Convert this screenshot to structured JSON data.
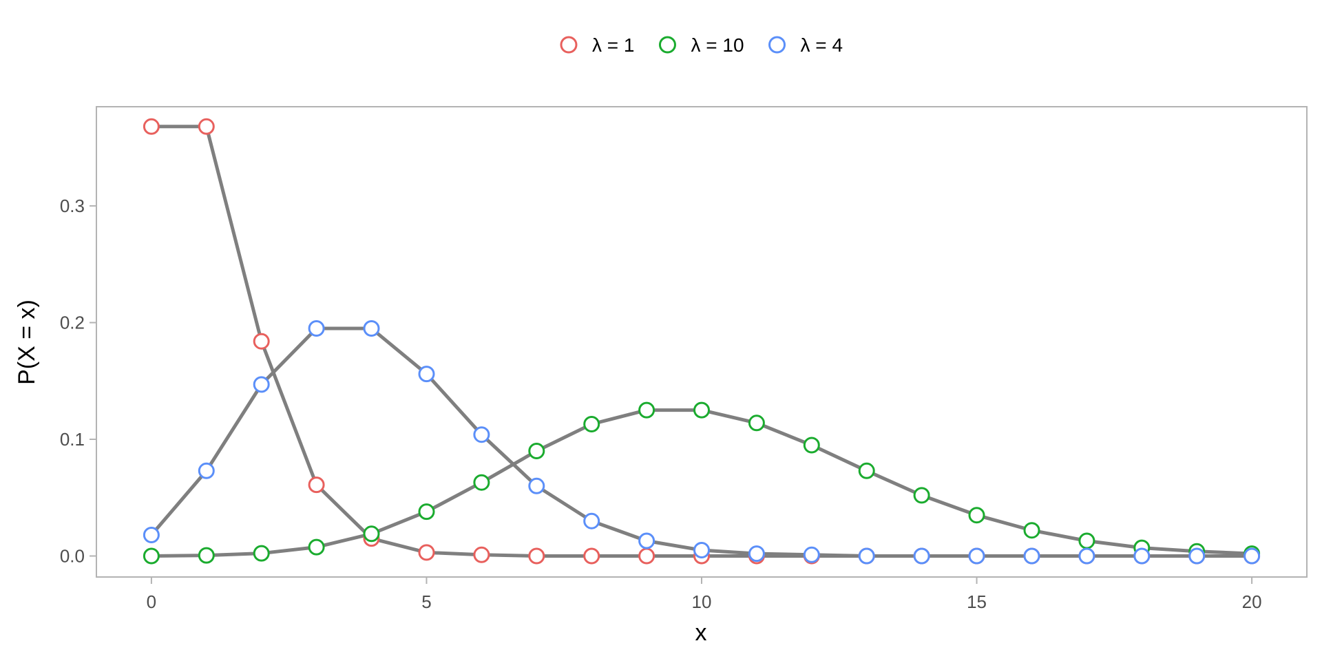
{
  "chart_data": {
    "type": "line",
    "title": "",
    "xlabel": "x",
    "ylabel": "P(X = x)",
    "xlim": [
      -1,
      21
    ],
    "ylim": [
      -0.018,
      0.385
    ],
    "x_ticks": [
      0,
      5,
      10,
      15,
      20
    ],
    "y_ticks": [
      0,
      0.1,
      0.2,
      0.3
    ],
    "x_tick_labels": [
      "0",
      "5",
      "10",
      "15",
      "20"
    ],
    "y_tick_labels": [
      "0.0",
      "0.1",
      "0.2",
      "0.3"
    ],
    "grid": false,
    "legend_position": "top",
    "line_color": "#7f7f7f",
    "x": [
      0,
      1,
      2,
      3,
      4,
      5,
      6,
      7,
      8,
      9,
      10,
      11,
      12,
      13,
      14,
      15,
      16,
      17,
      18,
      19,
      20
    ],
    "series": [
      {
        "name": "λ = 1",
        "color": "#e8605d",
        "values": [
          0.368,
          0.368,
          0.184,
          0.061,
          0.015,
          0.003,
          0.001,
          0.0,
          0.0,
          0.0,
          0.0,
          0.0,
          0.0,
          0.0,
          0.0,
          0.0,
          0.0,
          0.0,
          0.0,
          0.0,
          0.0
        ]
      },
      {
        "name": "λ = 10",
        "color": "#1aab2e",
        "values": [
          0.0,
          0.0005,
          0.0023,
          0.0076,
          0.019,
          0.038,
          0.063,
          0.09,
          0.113,
          0.125,
          0.125,
          0.114,
          0.095,
          0.073,
          0.052,
          0.035,
          0.022,
          0.013,
          0.007,
          0.004,
          0.002
        ]
      },
      {
        "name": "λ = 4",
        "color": "#5b8ff9",
        "values": [
          0.018,
          0.073,
          0.147,
          0.195,
          0.195,
          0.156,
          0.104,
          0.06,
          0.03,
          0.013,
          0.005,
          0.002,
          0.001,
          0.0,
          0.0,
          0.0,
          0.0,
          0.0,
          0.0,
          0.0,
          0.0
        ]
      }
    ]
  }
}
